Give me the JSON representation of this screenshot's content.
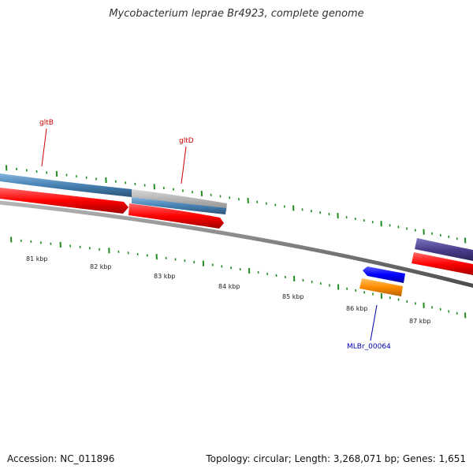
{
  "title": "Mycobacterium leprae Br4923, complete genome",
  "accession": "Accession: NC_011896",
  "summary": "Topology: circular; Length: 3,268,071 bp; Genes: 1,651",
  "ruler": {
    "labels": [
      "81 kbp",
      "82 kbp",
      "83 kbp",
      "84 kbp",
      "85 kbp",
      "86 kbp",
      "87 kbp"
    ]
  },
  "gene_labels": {
    "gltB": "gltB",
    "gltD": "gltD",
    "mlbr": "MLBr_00064"
  },
  "colors": {
    "backbone": "#808080",
    "cds_red": "#ff0000",
    "gene_steelblue": "#4682b4",
    "gene_gray": "#b0b0b0",
    "gene_purple": "#483d8b",
    "gene_blue": "#0000ff",
    "gene_orange": "#ff8c00",
    "tick_green": "#228b22",
    "label_red": "#cc0000",
    "label_blue": "#0000aa"
  }
}
